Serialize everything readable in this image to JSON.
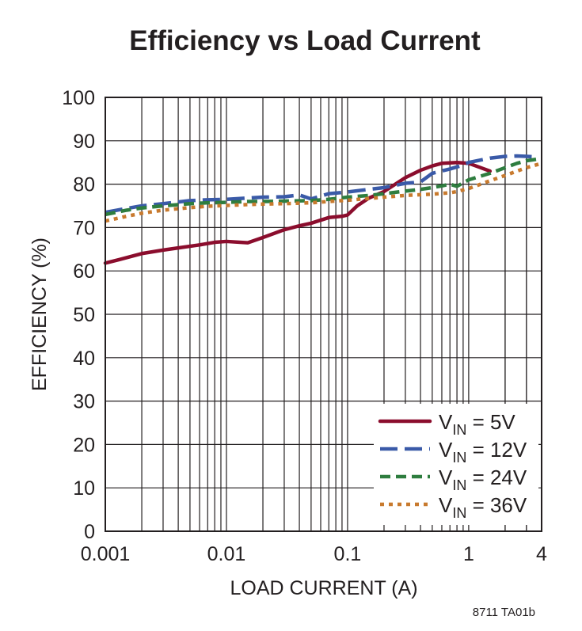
{
  "chart_data": {
    "type": "line",
    "title": "Efficiency vs Load Current",
    "xlabel": "LOAD CURRENT (A)",
    "ylabel": "EFFICIENCY (%)",
    "xscale": "log",
    "xlim": [
      0.001,
      4
    ],
    "ylim": [
      0,
      100
    ],
    "grid": true,
    "x_ticks": [
      0.001,
      0.01,
      0.1,
      1,
      4
    ],
    "x_tick_labels": [
      "0.001",
      "0.01",
      "0.1",
      "1",
      "4"
    ],
    "y_ticks": [
      0,
      10,
      20,
      30,
      40,
      50,
      60,
      70,
      80,
      90,
      100
    ],
    "y_tick_labels": [
      "0",
      "10",
      "20",
      "30",
      "40",
      "50",
      "60",
      "70",
      "80",
      "90",
      "100"
    ],
    "legend_position": "bottom-right",
    "series": [
      {
        "name": "VIN = 5V",
        "label_main": "V",
        "label_sub": "IN",
        "label_rest": " = 5V",
        "color": "#8b0d2d",
        "style": "solid",
        "x": [
          0.001,
          0.0013,
          0.002,
          0.003,
          0.004,
          0.006,
          0.008,
          0.01,
          0.015,
          0.02,
          0.03,
          0.04,
          0.05,
          0.07,
          0.09,
          0.1,
          0.12,
          0.15,
          0.2,
          0.3,
          0.4,
          0.5,
          0.6,
          0.8,
          1.0,
          1.2,
          1.5
        ],
        "y": [
          61.8,
          62.6,
          64.0,
          64.8,
          65.3,
          66.0,
          66.6,
          66.8,
          66.5,
          67.7,
          69.5,
          70.4,
          71.0,
          72.3,
          72.6,
          72.9,
          75.0,
          76.8,
          78.3,
          81.5,
          83.2,
          84.2,
          84.8,
          85.0,
          84.8,
          84.0,
          83.0
        ]
      },
      {
        "name": "VIN = 12V",
        "label_main": "V",
        "label_sub": "IN",
        "label_rest": " = 12V",
        "color": "#3a5aa8",
        "style": "longdash",
        "x": [
          0.001,
          0.0015,
          0.002,
          0.003,
          0.005,
          0.007,
          0.01,
          0.015,
          0.02,
          0.03,
          0.04,
          0.05,
          0.07,
          0.1,
          0.15,
          0.2,
          0.3,
          0.4,
          0.5,
          0.7,
          0.9,
          1.0,
          1.5,
          2.0,
          2.5,
          3.0,
          3.5
        ],
        "y": [
          73.5,
          74.4,
          75.0,
          75.5,
          76.2,
          76.4,
          76.5,
          76.8,
          77.0,
          77.1,
          77.5,
          76.6,
          77.8,
          78.2,
          78.8,
          79.2,
          80.2,
          80.5,
          82.5,
          83.5,
          84.4,
          85.0,
          86.0,
          86.4,
          86.5,
          86.4,
          86.3
        ]
      },
      {
        "name": "VIN = 24V",
        "label_main": "V",
        "label_sub": "IN",
        "label_rest": " = 24V",
        "color": "#2e7d3f",
        "style": "dash",
        "x": [
          0.001,
          0.0015,
          0.002,
          0.003,
          0.005,
          0.007,
          0.01,
          0.015,
          0.02,
          0.03,
          0.05,
          0.07,
          0.1,
          0.15,
          0.2,
          0.3,
          0.4,
          0.5,
          0.6,
          0.7,
          0.8,
          1.0,
          1.5,
          2.0,
          2.5,
          3.0,
          4.0
        ],
        "y": [
          73.0,
          74.0,
          74.5,
          75.0,
          75.5,
          75.7,
          75.8,
          76.0,
          76.0,
          76.1,
          76.2,
          76.5,
          77.0,
          77.4,
          77.8,
          78.4,
          78.8,
          79.2,
          79.6,
          80.0,
          79.5,
          81.0,
          82.5,
          83.8,
          84.8,
          85.4,
          85.9
        ]
      },
      {
        "name": "VIN = 36V",
        "label_main": "V",
        "label_sub": "IN",
        "label_rest": " = 36V",
        "color": "#c87a2e",
        "style": "dot",
        "x": [
          0.001,
          0.0015,
          0.002,
          0.003,
          0.005,
          0.007,
          0.01,
          0.015,
          0.02,
          0.03,
          0.05,
          0.07,
          0.1,
          0.15,
          0.2,
          0.3,
          0.5,
          0.7,
          0.8,
          1.0,
          1.2,
          1.5,
          2.0,
          2.5,
          3.0,
          4.0
        ],
        "y": [
          71.5,
          72.6,
          73.3,
          74.0,
          74.6,
          74.9,
          75.1,
          75.3,
          75.4,
          75.5,
          75.7,
          76.0,
          76.3,
          76.7,
          77.0,
          77.4,
          77.7,
          78.0,
          78.3,
          79.0,
          79.8,
          80.8,
          82.0,
          83.0,
          83.8,
          84.8
        ]
      }
    ]
  },
  "figure_code": "8711 TA01b"
}
